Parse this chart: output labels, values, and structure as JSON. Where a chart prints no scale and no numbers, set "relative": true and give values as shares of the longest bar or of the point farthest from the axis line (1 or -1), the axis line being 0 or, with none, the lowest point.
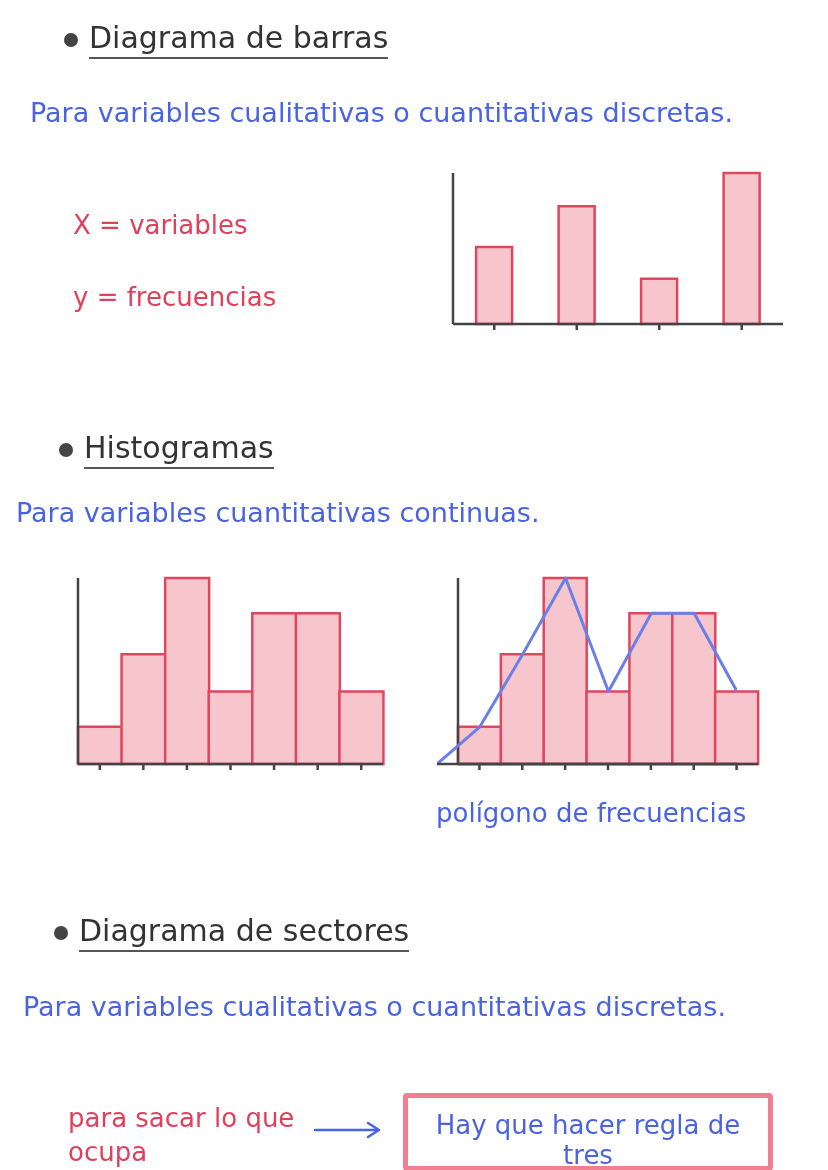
{
  "chart_data": [
    {
      "type": "bar",
      "title": "Diagrama de barras",
      "subtitle": "Para variables cualitativas o cuantitativas discretas.",
      "annotations": [
        "X = variables",
        "y = frecuencias"
      ],
      "relative": true,
      "categories": [
        null,
        null,
        null,
        null
      ],
      "series": [
        {
          "color": "#f7c5cc",
          "values": [
            0.51,
            0.78,
            0.3,
            1
          ]
        }
      ]
    },
    {
      "type": "bar",
      "title": "Histogramas",
      "subtitle": "Para variables cuantitativas continuas.",
      "relative": true,
      "categories": [
        null,
        null,
        null,
        null,
        null,
        null,
        null
      ],
      "series": [
        {
          "color": "#f7c5cc",
          "values": [
            0.2,
            0.59,
            1,
            0.39,
            0.81,
            0.81,
            0.39
          ]
        }
      ]
    },
    {
      "type": "bar",
      "relative": true,
      "categories": [
        null,
        null,
        null,
        null,
        null,
        null,
        null
      ],
      "series": [
        {
          "color": "#f7c5cc",
          "values": [
            0.2,
            0.59,
            1,
            0.39,
            0.81,
            0.81,
            0.39
          ]
        }
      ]
    },
    {
      "type": "line",
      "annotations": [
        "polígono de frecuencias"
      ],
      "relative": true,
      "categories": [
        null,
        null,
        null,
        null,
        null,
        null,
        null,
        null
      ],
      "series": [
        {
          "color": "#6b80e6",
          "values": [
            0,
            0.2,
            0.59,
            1,
            0.39,
            0.81,
            0.81,
            0.39
          ]
        }
      ]
    },
    {
      "type": "other",
      "title": "Diagrama de sectores",
      "subtitle": "Para variables cualitativas o cuantitativas discretas.",
      "annotations": [
        "para sacar lo que ocupa",
        "Hay que hacer regla de tres"
      ]
    }
  ]
}
